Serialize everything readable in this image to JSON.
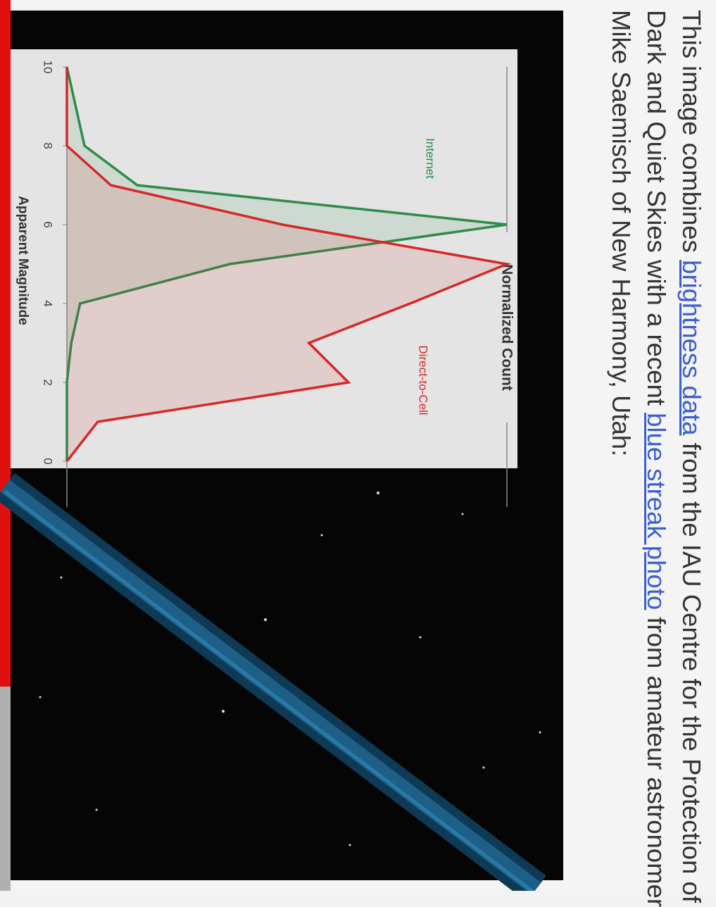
{
  "paragraph": {
    "line1": {
      "text": "This image combines ",
      "link": "brightness data",
      "tail": " from the IAU Centre for the Protection of"
    },
    "line2": {
      "text": "Dark and Quiet Skies with a recent ",
      "link": "blue streak photo",
      "tail": " from amateur astronomer"
    },
    "line3": {
      "text": "Mike Saemisch of New Harmony, Utah:"
    }
  },
  "chart_data": {
    "type": "line",
    "title": "Normalized Count",
    "x_label": "Apparent Magnitude",
    "x": [
      10,
      9,
      8,
      7,
      6,
      5,
      4,
      3,
      2,
      1,
      0
    ],
    "xlim": [
      10,
      0
    ],
    "xticks": [
      10,
      8,
      6,
      4,
      2,
      0
    ],
    "ylim": [
      0,
      1
    ],
    "grid": false,
    "series": [
      {
        "name": "Internet",
        "color": "#2e8b4a",
        "values": [
          0,
          0.02,
          0.04,
          0.16,
          1,
          0.37,
          0.03,
          0.01,
          0,
          0,
          0
        ]
      },
      {
        "name": "Direct-to-Cell",
        "color": "#d62828",
        "values": [
          0,
          0,
          0,
          0.1,
          0.49,
          1,
          0.78,
          0.55,
          0.64,
          0.07,
          0
        ]
      }
    ]
  }
}
